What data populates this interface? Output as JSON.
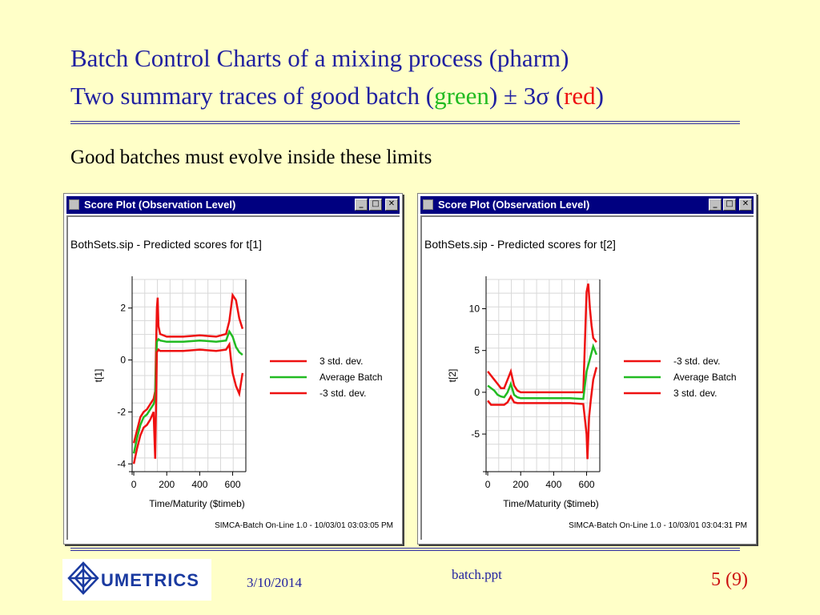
{
  "slide": {
    "title_line1": "Batch Control Charts of a mixing process (pharm)",
    "title_line2_prefix": "Two summary traces of good batch (",
    "title_line2_green": "green",
    "title_line2_middle": ") ± 3σ (",
    "title_line2_red": "red",
    "title_line2_suffix": ")",
    "subtitle": "Good batches must evolve inside these limits",
    "colors": {
      "title": "#2020a0",
      "green": "#22bb22",
      "red": "#ee1111",
      "background": "#ffffc8"
    }
  },
  "windows": [
    {
      "title": "Score Plot (Observation Level)",
      "plot_title": "BothSets.sip - Predicted scores for t[1]",
      "footer": "SIMCA-Batch On-Line 1.0 - 10/03/01 03:03:05 PM",
      "buttons": [
        "minimize",
        "maximize",
        "close"
      ]
    },
    {
      "title": "Score Plot (Observation Level)",
      "plot_title": "BothSets.sip - Predicted scores for t[2]",
      "footer": "SIMCA-Batch On-Line 1.0 - 10/03/01 03:04:31 PM",
      "buttons": [
        "minimize",
        "maximize",
        "close"
      ]
    }
  ],
  "chart_data": [
    {
      "type": "line",
      "xlabel": "Time/Maturity ($timeb)",
      "ylabel": "t[1]",
      "xlim": [
        -10,
        680
      ],
      "ylim": [
        -4.3,
        3.1
      ],
      "xticks": [
        0,
        200,
        400,
        600
      ],
      "yticks": [
        -4,
        -2,
        0,
        2
      ],
      "grid": true,
      "legend_position": "right",
      "series": [
        {
          "name": "3 std. dev.",
          "color": "#ee1111",
          "x": [
            0,
            20,
            40,
            60,
            80,
            100,
            120,
            130,
            140,
            145,
            150,
            160,
            200,
            300,
            400,
            500,
            560,
            580,
            600,
            620,
            640,
            660
          ],
          "y": [
            -3.2,
            -2.7,
            -2.2,
            -2.0,
            -1.9,
            -1.7,
            -1.5,
            -1.2,
            2.0,
            2.4,
            1.3,
            1.0,
            0.9,
            0.9,
            0.95,
            0.9,
            1.0,
            1.5,
            2.5,
            2.3,
            1.6,
            1.2
          ]
        },
        {
          "name": "Average Batch",
          "color": "#22bb22",
          "x": [
            0,
            20,
            40,
            60,
            80,
            100,
            120,
            130,
            140,
            150,
            160,
            200,
            300,
            400,
            500,
            560,
            580,
            600,
            620,
            640,
            660
          ],
          "y": [
            -3.6,
            -3.0,
            -2.5,
            -2.2,
            -2.1,
            -1.9,
            -1.7,
            -1.5,
            0.7,
            0.8,
            0.75,
            0.7,
            0.7,
            0.75,
            0.7,
            0.75,
            1.1,
            0.9,
            0.5,
            0.3,
            0.2
          ]
        },
        {
          "name": "-3 std. dev.",
          "color": "#ee1111",
          "x": [
            0,
            20,
            40,
            60,
            80,
            100,
            120,
            130,
            140,
            150,
            160,
            200,
            300,
            400,
            500,
            560,
            580,
            590,
            600,
            620,
            640,
            660
          ],
          "y": [
            -4.0,
            -3.4,
            -2.9,
            -2.6,
            -2.5,
            -2.3,
            -2.0,
            -3.8,
            0.3,
            0.4,
            0.35,
            0.35,
            0.35,
            0.4,
            0.35,
            0.4,
            0.6,
            0.0,
            -0.5,
            -1.0,
            -1.3,
            -0.5
          ]
        }
      ]
    },
    {
      "type": "line",
      "xlabel": "Time/Maturity ($timeb)",
      "ylabel": "t[2]",
      "xlim": [
        -10,
        680
      ],
      "ylim": [
        -9.5,
        13.5
      ],
      "xticks": [
        0,
        200,
        400,
        600
      ],
      "yticks": [
        -5,
        0,
        5,
        10
      ],
      "grid": true,
      "legend_position": "right",
      "series": [
        {
          "name": "-3 std. dev.",
          "color": "#ee1111",
          "x": [
            0,
            20,
            40,
            60,
            80,
            100,
            120,
            140,
            160,
            180,
            200,
            300,
            400,
            500,
            580,
            600,
            610,
            620,
            630,
            640,
            660
          ],
          "y": [
            2.5,
            2.0,
            1.5,
            1.0,
            0.5,
            0.5,
            1.5,
            2.5,
            0.8,
            0.2,
            0.0,
            0.0,
            0.0,
            0.0,
            0.0,
            12.0,
            13.0,
            10.0,
            8.0,
            6.5,
            6.0
          ]
        },
        {
          "name": "Average Batch",
          "color": "#22bb22",
          "x": [
            0,
            20,
            40,
            60,
            80,
            100,
            120,
            140,
            160,
            180,
            200,
            300,
            400,
            500,
            580,
            600,
            620,
            640,
            660
          ],
          "y": [
            0.8,
            0.5,
            0.2,
            -0.3,
            -0.5,
            -0.6,
            0.0,
            1.0,
            -0.3,
            -0.6,
            -0.7,
            -0.7,
            -0.7,
            -0.7,
            -0.8,
            2.5,
            4.0,
            5.5,
            4.5
          ]
        },
        {
          "name": "3 std. dev.",
          "color": "#ee1111",
          "x": [
            0,
            20,
            40,
            60,
            80,
            100,
            120,
            140,
            160,
            180,
            200,
            300,
            400,
            500,
            580,
            600,
            605,
            615,
            625,
            640,
            660
          ],
          "y": [
            -1.0,
            -1.5,
            -1.5,
            -1.5,
            -1.5,
            -1.5,
            -1.2,
            -0.5,
            -1.2,
            -1.3,
            -1.3,
            -1.3,
            -1.3,
            -1.3,
            -1.4,
            -5.0,
            -8.0,
            -3.0,
            -1.0,
            1.5,
            3.0
          ]
        }
      ]
    }
  ],
  "footer": {
    "logo_text": "UMETRICS",
    "date": "3/10/2014",
    "filename": "batch.ppt",
    "page": "5 (9)"
  }
}
